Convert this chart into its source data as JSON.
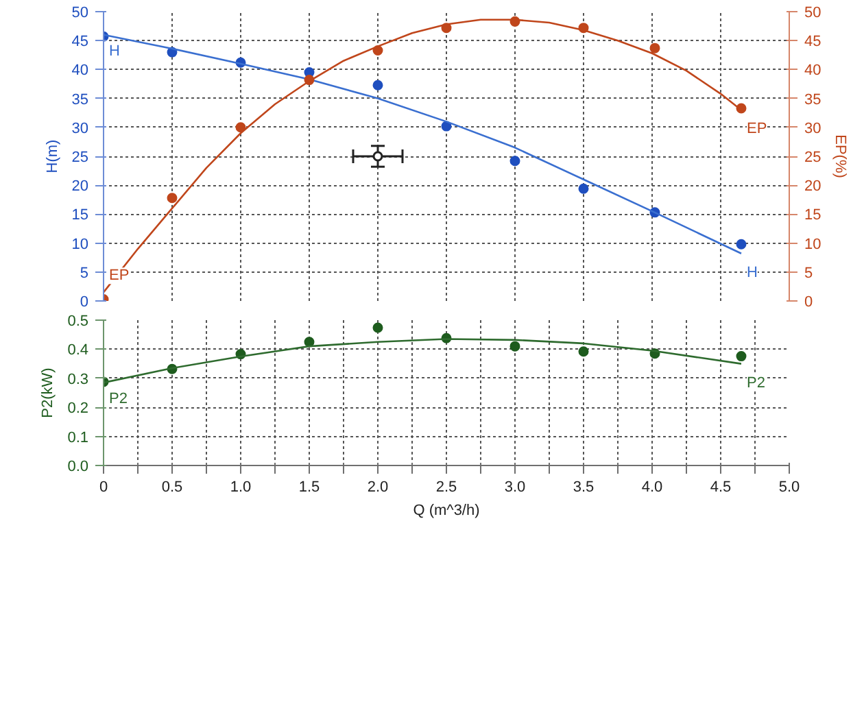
{
  "chart_data": [
    {
      "type": "line",
      "ylabel": "H(m)",
      "y2label": "EP(%)",
      "xlim": [
        0,
        5
      ],
      "ylim": [
        0,
        50
      ],
      "y2lim": [
        0,
        50
      ],
      "xticks": [
        0,
        0.5,
        1,
        1.5,
        2,
        2.5,
        3,
        3.5,
        4,
        4.5,
        5
      ],
      "yticks": [
        0,
        5,
        10,
        15,
        20,
        25,
        30,
        35,
        40,
        45,
        50
      ],
      "y2ticks": [
        0,
        5,
        10,
        15,
        20,
        25,
        30,
        35,
        40,
        45,
        50
      ],
      "tick_labels": "y",
      "grid": true,
      "series": [
        {
          "type": "scatter",
          "marker": "circle",
          "color": "#1f4fbf",
          "x": [
            0,
            0.5,
            1.0,
            1.5,
            2.0,
            2.5,
            3.0,
            3.5,
            4.02,
            4.65
          ],
          "values": [
            45.7,
            43,
            41.2,
            39.5,
            37.3,
            30.2,
            24.2,
            19.4,
            15.3,
            9.8
          ]
        },
        {
          "name": "H",
          "color": "#3a6fd0",
          "x": [
            0,
            0.5,
            1.0,
            1.5,
            2.0,
            2.5,
            3.0,
            3.5,
            4.0,
            4.65
          ],
          "values": [
            46,
            43.6,
            41,
            38.3,
            35,
            31,
            26.5,
            21,
            15.5,
            8.2
          ]
        },
        {
          "type": "scatter",
          "marker": "circle",
          "axis": "y2",
          "color": "#c0461b",
          "x": [
            0,
            0.5,
            1.0,
            1.5,
            2.0,
            2.5,
            3.0,
            3.5,
            4.02,
            4.65
          ],
          "values": [
            0.3,
            17.8,
            30,
            38.2,
            43.3,
            47.2,
            48.3,
            47.2,
            43.7,
            33.3
          ]
        },
        {
          "name": "EP",
          "axis": "y2",
          "color": "#c0461b",
          "x": [
            0,
            0.25,
            0.5,
            0.75,
            1.0,
            1.25,
            1.5,
            1.75,
            2.0,
            2.25,
            2.5,
            2.75,
            3.0,
            3.25,
            3.5,
            3.75,
            4.0,
            4.25,
            4.5,
            4.65
          ],
          "values": [
            1.5,
            9,
            16,
            23,
            29,
            34,
            38,
            41.5,
            44,
            46.3,
            47.8,
            48.6,
            48.6,
            48.1,
            46.8,
            45,
            42.8,
            39.8,
            35.8,
            33
          ]
        },
        {
          "type": "scatter",
          "marker": "circle",
          "color": "#222222",
          "x": [
            2.0
          ],
          "values": [
            25
          ],
          "errors": [
            1.8
          ],
          "xerrors": [
            0.18
          ]
        }
      ]
    },
    {
      "type": "line",
      "ylabel": "P2(kW)",
      "xlabel": "Q (m^3/h)",
      "xlim": [
        0,
        5
      ],
      "ylim": [
        0,
        0.5
      ],
      "xticks": [
        0,
        {
          "value": 0.25,
          "label": null
        },
        0.5,
        {
          "value": 0.75,
          "label": null
        },
        {
          "value": 1,
          "label": "1.0"
        },
        {
          "value": 1.25,
          "label": null
        },
        1.5,
        {
          "value": 1.75,
          "label": null
        },
        {
          "value": 2,
          "label": "2.0"
        },
        {
          "value": 2.25,
          "label": null
        },
        2.5,
        {
          "value": 2.75,
          "label": null
        },
        {
          "value": 3,
          "label": "3.0"
        },
        {
          "value": 3.25,
          "label": null
        },
        3.5,
        {
          "value": 3.75,
          "label": null
        },
        {
          "value": 4,
          "label": "4.0"
        },
        {
          "value": 4.25,
          "label": null
        },
        4.5,
        {
          "value": 4.75,
          "label": null
        },
        {
          "value": 5,
          "label": "5.0"
        }
      ],
      "yticks": [
        {
          "value": 0,
          "label": "0.0"
        },
        0.1,
        0.2,
        0.3,
        0.4,
        0.5
      ],
      "grid": true,
      "series": [
        {
          "type": "scatter",
          "marker": "circle",
          "color": "#1e5c1e",
          "x": [
            0,
            0.5,
            1.0,
            1.5,
            2.0,
            2.5,
            3.0,
            3.5,
            4.02,
            4.65
          ],
          "values": [
            0.288,
            0.332,
            0.383,
            0.425,
            0.474,
            0.438,
            0.41,
            0.392,
            0.385,
            0.376
          ]
        },
        {
          "name": "P2",
          "color": "#2e6b2e",
          "x": [
            0,
            0.5,
            1.0,
            1.5,
            2.0,
            2.5,
            3.0,
            3.5,
            4.0,
            4.65
          ],
          "values": [
            0.285,
            0.335,
            0.375,
            0.41,
            0.425,
            0.435,
            0.432,
            0.42,
            0.395,
            0.35
          ]
        }
      ]
    }
  ]
}
